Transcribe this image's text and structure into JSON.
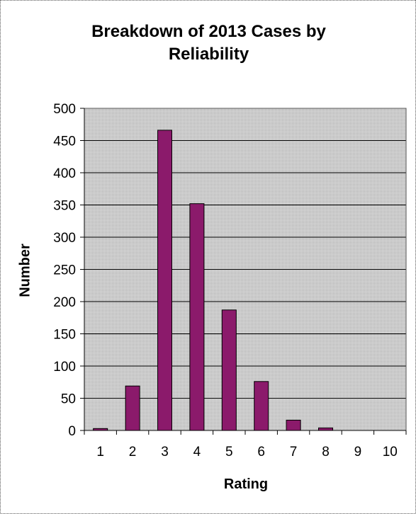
{
  "chart_data": {
    "type": "bar",
    "title": "Breakdown of 2013 Cases by Reliability",
    "title_lines": [
      "Breakdown of 2013 Cases by",
      "Reliability"
    ],
    "xlabel": "Rating",
    "ylabel": "Number",
    "categories": [
      "1",
      "2",
      "3",
      "4",
      "5",
      "6",
      "7",
      "8",
      "9",
      "10"
    ],
    "values": [
      3,
      69,
      466,
      352,
      187,
      76,
      16,
      4,
      0,
      0
    ],
    "ylim": [
      0,
      500
    ],
    "yticks": [
      0,
      50,
      100,
      150,
      200,
      250,
      300,
      350,
      400,
      450,
      500
    ],
    "grid": true,
    "legend": "none",
    "colors": {
      "bar_fill": "#8b1a6b",
      "bar_stroke": "#000000",
      "plot_background": "#c8c8c8",
      "gridline": "#000000"
    }
  }
}
